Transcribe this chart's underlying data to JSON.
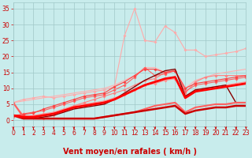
{
  "background_color": "#c8ecec",
  "grid_color": "#a0c8c8",
  "xlabel": "Vent moyen/en rafales ( km/h )",
  "xlim": [
    0,
    23
  ],
  "ylim": [
    -2,
    37
  ],
  "yticks": [
    0,
    5,
    10,
    15,
    20,
    25,
    30,
    35
  ],
  "xticks": [
    0,
    1,
    2,
    3,
    4,
    5,
    6,
    7,
    8,
    9,
    10,
    11,
    12,
    13,
    14,
    15,
    16,
    17,
    18,
    19,
    20,
    21,
    22,
    23
  ],
  "series": [
    {
      "x": [
        0,
        1,
        2,
        3,
        4,
        5,
        6,
        7,
        8,
        9,
        10,
        11,
        12,
        13,
        14,
        15,
        16,
        17,
        18,
        19,
        20,
        21,
        22,
        23
      ],
      "y": [
        5.5,
        6.5,
        7.0,
        7.5,
        7.0,
        7.5,
        8.0,
        8.5,
        9.0,
        9.5,
        10.5,
        26.5,
        35.0,
        25.0,
        24.5,
        29.5,
        27.5,
        22.0,
        22.0,
        20.0,
        20.5,
        21.0,
        21.5,
        22.5
      ],
      "color": "#ffaaaa",
      "lw": 0.8,
      "marker": "D",
      "ms": 1.8
    },
    {
      "x": [
        0,
        1,
        2,
        3,
        4,
        5,
        6,
        7,
        8,
        9,
        10,
        11,
        12,
        13,
        14,
        15,
        16,
        17,
        18,
        19,
        20,
        21,
        22,
        23
      ],
      "y": [
        5.5,
        6.0,
        6.5,
        7.0,
        7.5,
        8.0,
        8.5,
        9.0,
        9.5,
        10.0,
        11.0,
        12.5,
        14.0,
        16.5,
        16.5,
        15.0,
        15.5,
        10.0,
        12.5,
        13.5,
        14.5,
        15.0,
        15.5,
        16.0
      ],
      "color": "#ffb0b0",
      "lw": 0.8,
      "marker": null,
      "ms": 0
    },
    {
      "x": [
        0,
        1,
        2,
        3,
        4,
        5,
        6,
        7,
        8,
        9,
        10,
        11,
        12,
        13,
        14,
        15,
        16,
        17,
        18,
        19,
        20,
        21,
        22,
        23
      ],
      "y": [
        1.5,
        1.0,
        1.5,
        2.0,
        2.5,
        3.5,
        4.5,
        5.0,
        5.5,
        6.0,
        7.0,
        8.0,
        9.5,
        11.0,
        11.5,
        12.5,
        13.0,
        7.5,
        9.5,
        10.0,
        10.5,
        11.0,
        11.5,
        12.0
      ],
      "color": "#ff9090",
      "lw": 0.8,
      "marker": "D",
      "ms": 1.8
    },
    {
      "x": [
        0,
        1,
        2,
        3,
        4,
        5,
        6,
        7,
        8,
        9,
        10,
        11,
        12,
        13,
        14,
        15,
        16,
        17,
        18,
        19,
        20,
        21,
        22,
        23
      ],
      "y": [
        5.5,
        1.5,
        1.0,
        0.5,
        1.5,
        3.0,
        4.5,
        5.5,
        6.5,
        7.5,
        8.5,
        9.5,
        11.0,
        12.5,
        13.0,
        15.0,
        15.5,
        8.5,
        12.0,
        13.5,
        14.0,
        14.0,
        14.0,
        14.0
      ],
      "color": "#ff8080",
      "lw": 0.8,
      "marker": "D",
      "ms": 1.8
    },
    {
      "x": [
        0,
        1,
        2,
        3,
        4,
        5,
        6,
        7,
        8,
        9,
        10,
        11,
        12,
        13,
        14,
        15,
        16,
        17,
        18,
        19,
        20,
        21,
        22,
        23
      ],
      "y": [
        1.0,
        2.0,
        2.5,
        3.0,
        4.0,
        5.0,
        6.0,
        7.0,
        7.5,
        8.0,
        9.5,
        11.0,
        13.5,
        16.5,
        14.0,
        14.5,
        15.5,
        9.0,
        11.0,
        11.5,
        12.0,
        12.5,
        13.0,
        13.5
      ],
      "color": "#ff6060",
      "lw": 0.8,
      "marker": "D",
      "ms": 1.8
    },
    {
      "x": [
        0,
        1,
        2,
        3,
        4,
        5,
        6,
        7,
        8,
        9,
        10,
        11,
        12,
        13,
        14,
        15,
        16,
        17,
        18,
        19,
        20,
        21,
        22,
        23
      ],
      "y": [
        1.5,
        1.8,
        2.2,
        3.5,
        4.5,
        5.5,
        6.5,
        7.5,
        8.0,
        8.5,
        10.5,
        12.0,
        14.0,
        16.0,
        16.0,
        15.0,
        15.5,
        10.0,
        11.5,
        12.0,
        12.5,
        13.0,
        13.5,
        14.0
      ],
      "color": "#ff4040",
      "lw": 0.8,
      "marker": "D",
      "ms": 1.8
    },
    {
      "x": [
        0,
        1,
        2,
        3,
        4,
        5,
        6,
        7,
        8,
        9,
        10,
        11,
        12,
        13,
        14,
        15,
        16,
        17,
        18,
        19,
        20,
        21,
        22,
        23
      ],
      "y": [
        1.5,
        1.0,
        1.0,
        1.5,
        2.0,
        3.0,
        4.0,
        4.5,
        5.0,
        5.5,
        6.5,
        8.0,
        9.5,
        11.0,
        12.0,
        13.0,
        13.5,
        7.0,
        9.0,
        9.5,
        10.0,
        10.5,
        11.0,
        11.5
      ],
      "color": "#dd2222",
      "lw": 1.0,
      "marker": null,
      "ms": 0
    },
    {
      "x": [
        0,
        1,
        2,
        3,
        4,
        5,
        6,
        7,
        8,
        9,
        10,
        11,
        12,
        13,
        14,
        15,
        16,
        17,
        18,
        19,
        20,
        21,
        22,
        23
      ],
      "y": [
        1.5,
        1.0,
        0.5,
        1.0,
        1.5,
        2.5,
        3.5,
        4.0,
        4.5,
        5.0,
        6.5,
        8.5,
        10.5,
        12.5,
        14.0,
        15.5,
        16.0,
        7.5,
        9.5,
        10.0,
        10.5,
        11.0,
        5.5,
        5.5
      ],
      "color": "#880000",
      "lw": 1.0,
      "marker": null,
      "ms": 0
    },
    {
      "x": [
        0,
        1,
        2,
        3,
        4,
        5,
        6,
        7,
        8,
        9,
        10,
        11,
        12,
        13,
        14,
        15,
        16,
        17,
        18,
        19,
        20,
        21,
        22,
        23
      ],
      "y": [
        5.5,
        1.0,
        0.5,
        0.5,
        0.5,
        0.5,
        0.5,
        0.5,
        0.5,
        1.0,
        1.5,
        2.0,
        2.5,
        3.5,
        4.5,
        5.0,
        5.5,
        2.5,
        4.0,
        4.5,
        5.0,
        5.0,
        5.5,
        5.5
      ],
      "color": "#ff6060",
      "lw": 1.5,
      "marker": null,
      "ms": 0
    },
    {
      "x": [
        0,
        1,
        2,
        3,
        4,
        5,
        6,
        7,
        8,
        9,
        10,
        11,
        12,
        13,
        14,
        15,
        16,
        17,
        18,
        19,
        20,
        21,
        22,
        23
      ],
      "y": [
        1.5,
        0.5,
        0.5,
        0.5,
        0.5,
        0.5,
        0.5,
        0.5,
        0.5,
        1.0,
        1.5,
        2.0,
        2.5,
        3.0,
        3.5,
        4.0,
        4.5,
        2.0,
        3.0,
        3.5,
        4.0,
        4.0,
        4.5,
        4.5
      ],
      "color": "#cc0000",
      "lw": 1.8,
      "marker": null,
      "ms": 0
    },
    {
      "x": [
        0,
        1,
        2,
        3,
        4,
        5,
        6,
        7,
        8,
        9,
        10,
        11,
        12,
        13,
        14,
        15,
        16,
        17,
        18,
        19,
        20,
        21,
        22,
        23
      ],
      "y": [
        1.5,
        1.0,
        1.0,
        1.5,
        2.0,
        3.0,
        4.0,
        4.5,
        5.0,
        5.5,
        6.5,
        8.0,
        9.5,
        11.0,
        12.0,
        13.0,
        13.5,
        7.0,
        9.0,
        9.5,
        10.0,
        10.5,
        11.0,
        11.5
      ],
      "color": "#ff0000",
      "lw": 2.0,
      "marker": null,
      "ms": 0
    }
  ],
  "arrow_color": "#cc0000",
  "tick_color": "#cc0000",
  "label_color": "#cc0000",
  "tick_fontsize": 5.5,
  "label_fontsize": 7
}
